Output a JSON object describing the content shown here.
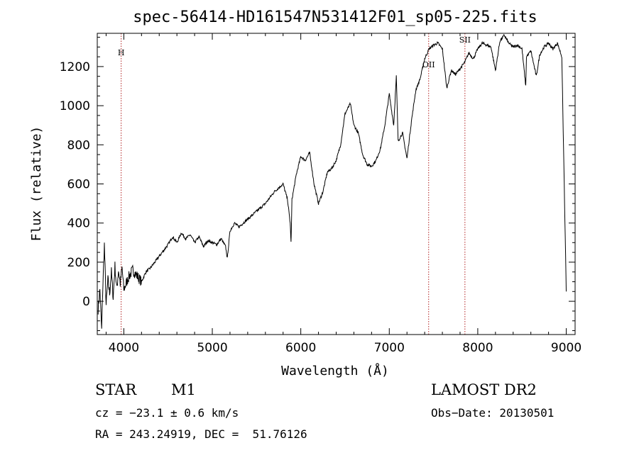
{
  "chart_data": {
    "type": "line",
    "title": "spec-56414-HD161547N531412F01_sp05-225.fits",
    "xlabel": "Wavelength (Å)",
    "ylabel": "Flux (relative)",
    "xlim": [
      3700,
      9100
    ],
    "ylim": [
      -170,
      1370
    ],
    "x_ticks": [
      4000,
      5000,
      6000,
      7000,
      8000,
      9000
    ],
    "y_ticks": [
      0,
      200,
      400,
      600,
      800,
      1000,
      1200
    ],
    "grid": false,
    "legend": "none",
    "line_color": "#000000",
    "marker_color": "#b22222",
    "line_markers": [
      {
        "label": "H",
        "x": 3970
      },
      {
        "label": "OII",
        "x": 7445
      },
      {
        "label": "SII",
        "x": 7855
      }
    ],
    "series": [
      {
        "x": [
          3710,
          3730,
          3750,
          3760,
          3780,
          3800,
          3820,
          3840,
          3860,
          3880,
          3900,
          3920,
          3940,
          3960,
          3980,
          4000,
          4050,
          4100,
          4150,
          4200,
          4250,
          4300,
          4400,
          4500,
          4550,
          4600,
          4650,
          4700,
          4750,
          4800,
          4850,
          4900,
          4950,
          5000,
          5050,
          5100,
          5150,
          5170,
          5200,
          5250,
          5300,
          5400,
          5500,
          5600,
          5700,
          5800,
          5850,
          5880,
          5890,
          5900,
          5950,
          6000,
          6050,
          6100,
          6150,
          6200,
          6250,
          6300,
          6350,
          6400,
          6450,
          6500,
          6560,
          6600,
          6650,
          6700,
          6750,
          6800,
          6850,
          6900,
          6950,
          7000,
          7050,
          7080,
          7100,
          7150,
          7200,
          7250,
          7300,
          7350,
          7400,
          7450,
          7500,
          7550,
          7600,
          7650,
          7700,
          7750,
          7800,
          7850,
          7900,
          7950,
          8000,
          8050,
          8100,
          8150,
          8200,
          8250,
          8300,
          8350,
          8400,
          8450,
          8500,
          8542,
          8550,
          8600,
          8662,
          8700,
          8750,
          8800,
          8850,
          8900,
          8950,
          9000
        ],
        "y": [
          -40,
          60,
          -150,
          40,
          290,
          -20,
          110,
          40,
          150,
          20,
          180,
          60,
          160,
          90,
          170,
          60,
          120,
          160,
          130,
          100,
          150,
          170,
          230,
          290,
          330,
          300,
          350,
          320,
          340,
          300,
          330,
          280,
          310,
          300,
          290,
          320,
          280,
          220,
          360,
          400,
          380,
          420,
          460,
          500,
          560,
          600,
          520,
          400,
          300,
          520,
          650,
          740,
          720,
          760,
          600,
          500,
          560,
          660,
          680,
          720,
          800,
          960,
          1010,
          900,
          860,
          750,
          700,
          690,
          720,
          780,
          900,
          1060,
          900,
          1150,
          820,
          860,
          730,
          920,
          1080,
          1140,
          1240,
          1290,
          1310,
          1320,
          1290,
          1090,
          1180,
          1160,
          1190,
          1220,
          1270,
          1240,
          1290,
          1320,
          1310,
          1300,
          1180,
          1330,
          1360,
          1320,
          1300,
          1310,
          1290,
          1100,
          1250,
          1280,
          1150,
          1260,
          1300,
          1320,
          1290,
          1320,
          1250,
          50
        ]
      }
    ]
  },
  "footer": {
    "class_label": "STAR",
    "subclass": "M1",
    "survey": "LAMOST DR2",
    "cz": "cz = −23.1 ± 0.6 km/s",
    "obs_date": "Obs−Date: 20130501",
    "coords": "RA = 243.24919, DEC =  51.76126"
  }
}
